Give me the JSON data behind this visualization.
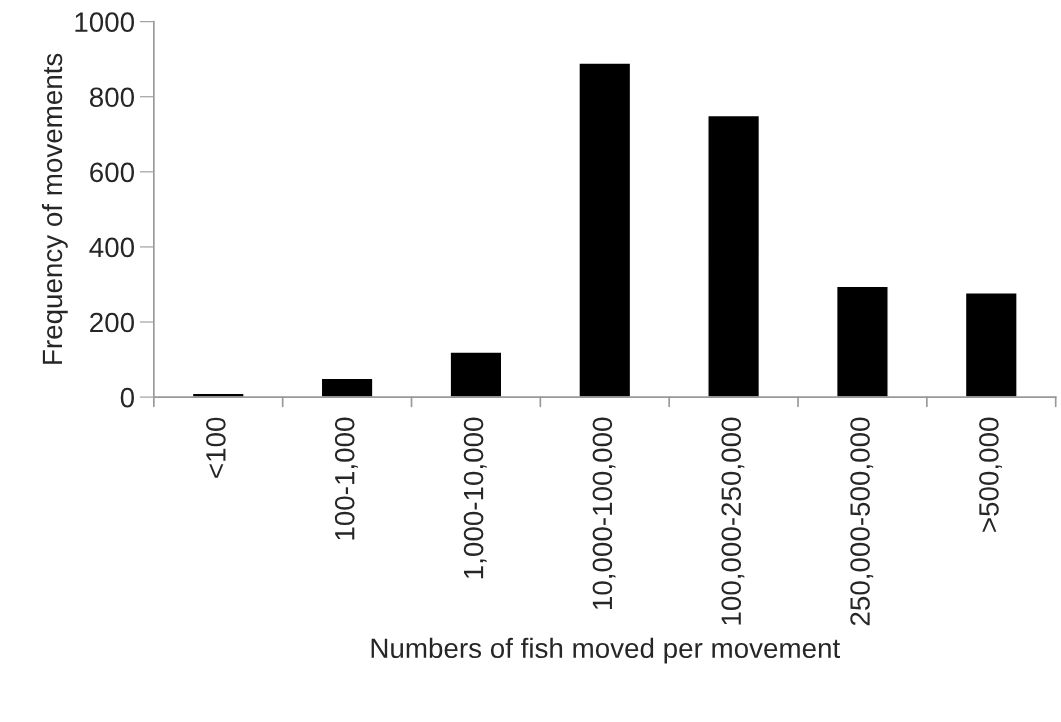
{
  "chart_data": {
    "type": "bar",
    "xlabel": "Numbers of fish moved per movement",
    "ylabel": "Frequency of movements",
    "categories": [
      "<100",
      "100-1,000",
      "1,000-10,000",
      "10,000-100,000",
      "100,000-250,000",
      "250,000-500,000",
      ">500,000"
    ],
    "values": [
      10,
      50,
      120,
      890,
      750,
      295,
      278
    ],
    "color": "#000000",
    "ylim": [
      0,
      1000
    ],
    "yticks": [
      0,
      200,
      400,
      600,
      800,
      1000
    ],
    "grid": false,
    "legend": false
  }
}
